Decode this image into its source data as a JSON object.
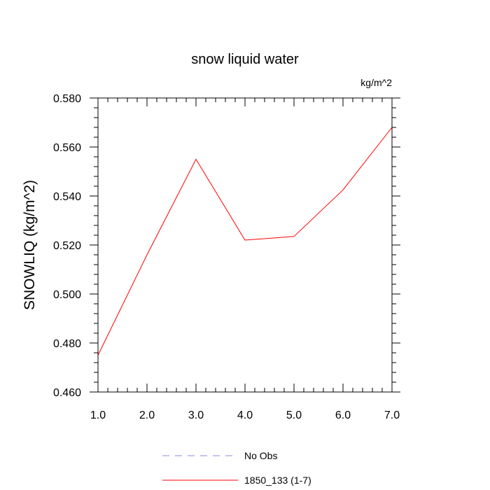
{
  "chart_data": {
    "type": "line",
    "title": "snow liquid water",
    "units_label": "kg/m^2",
    "ylabel": "SNOWLIQ  (kg/m^2)",
    "xlabel": "",
    "xlim": [
      1.0,
      7.0
    ],
    "ylim": [
      0.46,
      0.58
    ],
    "x_ticks": [
      "1.0",
      "2.0",
      "3.0",
      "4.0",
      "5.0",
      "6.0",
      "7.0"
    ],
    "y_ticks": [
      "0.460",
      "0.480",
      "0.500",
      "0.520",
      "0.540",
      "0.560",
      "0.580"
    ],
    "x_tick_values": [
      1,
      2,
      3,
      4,
      5,
      6,
      7
    ],
    "y_tick_values": [
      0.46,
      0.48,
      0.5,
      0.52,
      0.54,
      0.56,
      0.58
    ],
    "grid": false,
    "legend_position": "bottom-center",
    "series": [
      {
        "name": "1850_133 (1-7)",
        "color": "#ff0000",
        "style": "solid",
        "x": [
          1,
          2,
          3,
          4,
          5,
          6,
          7
        ],
        "y": [
          0.475,
          0.516,
          0.555,
          0.522,
          0.5235,
          0.5425,
          0.568
        ]
      }
    ],
    "legend": [
      {
        "label": "No Obs",
        "color": "#8a8ae0",
        "style": "dashed"
      },
      {
        "label": "1850_133 (1-7)",
        "color": "#ff0000",
        "style": "solid"
      }
    ]
  }
}
